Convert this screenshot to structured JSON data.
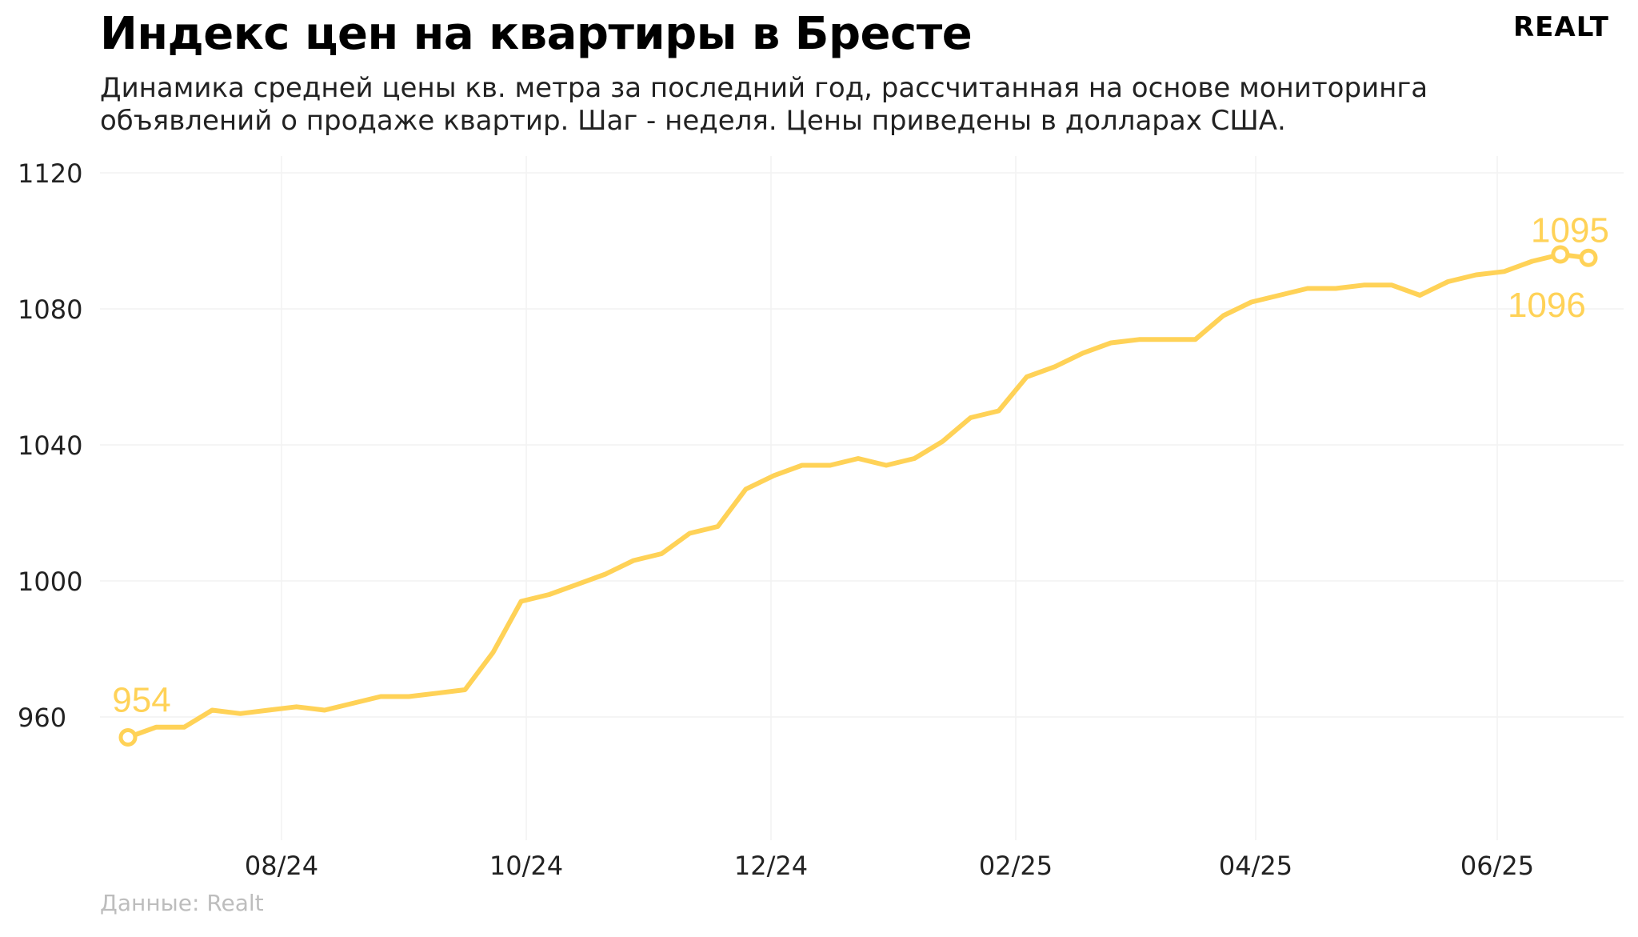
{
  "header": {
    "title": "Индекс цен на квартиры в Бресте",
    "subtitle": "Динамика средней цены кв. метра за последний год, рассчитанная на основе мониторинга объявлений о продаже квартир. Шаг - неделя. Цены приведены в долларах США.",
    "logo_main": "REALT",
    "source": "Данные: Realt"
  },
  "colors": {
    "line": "#ffd257",
    "grid": "#f2f2f2",
    "text": "#222222",
    "source": "#bdbdbd"
  },
  "chart_data": {
    "type": "line",
    "title": "Индекс цен на квартиры в Бресте",
    "xlabel": "",
    "ylabel": "",
    "ylim": [
      920,
      1125
    ],
    "yticks": [
      960,
      1000,
      1040,
      1080,
      1120
    ],
    "xticks": [
      "08/24",
      "10/24",
      "12/24",
      "02/25",
      "04/25",
      "06/25"
    ],
    "grid": true,
    "values": [
      954,
      957,
      957,
      962,
      961,
      962,
      963,
      962,
      964,
      966,
      966,
      967,
      968,
      979,
      994,
      996,
      999,
      1002,
      1006,
      1008,
      1014,
      1016,
      1027,
      1031,
      1034,
      1034,
      1036,
      1034,
      1036,
      1041,
      1048,
      1050,
      1060,
      1063,
      1067,
      1070,
      1071,
      1071,
      1071,
      1078,
      1082,
      1084,
      1086,
      1086,
      1087,
      1087,
      1084,
      1088,
      1090,
      1091,
      1094,
      1096,
      1095
    ],
    "annotations": [
      {
        "label": "954",
        "index": 0
      },
      {
        "label": "1096",
        "index": 51
      },
      {
        "label": "1095",
        "index": 52
      }
    ]
  }
}
